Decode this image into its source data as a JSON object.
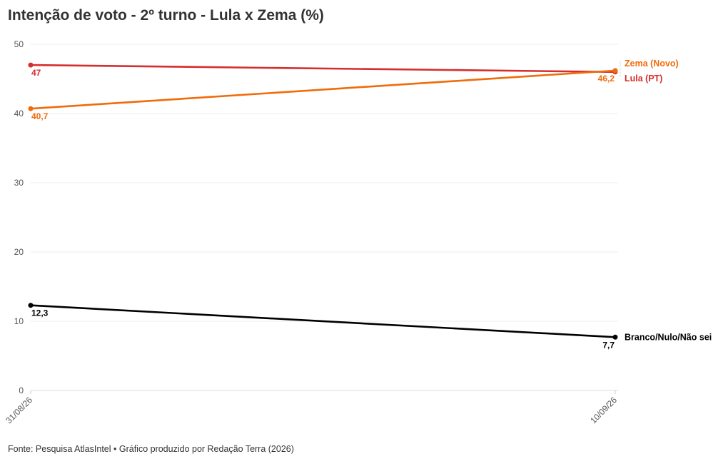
{
  "chart_data": {
    "type": "line",
    "title": "Intenção de voto - 2º turno - Lula x Zema (%)",
    "x": [
      "31/08/26",
      "10/09/26"
    ],
    "ylim": [
      0,
      50
    ],
    "yticks": [
      "0",
      "10",
      "20",
      "30",
      "40",
      "50"
    ],
    "grid": true,
    "series": [
      {
        "name": "Lula (PT)",
        "values": [
          47,
          46
        ],
        "labels": [
          "47",
          ""
        ],
        "color": "#d62d2d"
      },
      {
        "name": "Zema (Novo)",
        "values": [
          40.7,
          46.2
        ],
        "labels": [
          "40,7",
          "46,2"
        ],
        "color": "#f06b0a"
      },
      {
        "name": "Branco/Nulo/Não sei",
        "values": [
          12.3,
          7.7
        ],
        "labels": [
          "12,3",
          "7,7"
        ],
        "color": "#000000"
      }
    ]
  },
  "footer": "Fonte: Pesquisa AtlasIntel • Gráfico produzido por Redação Terra (2026)"
}
